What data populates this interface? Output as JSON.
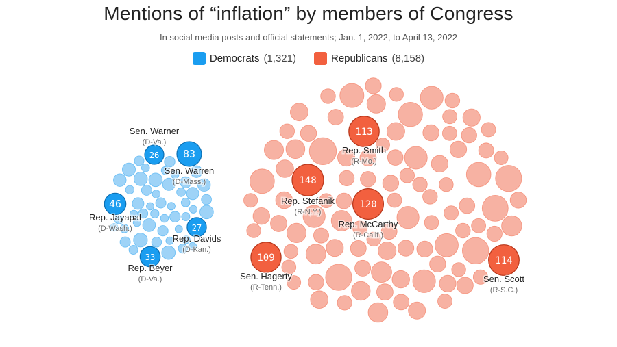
{
  "header": {
    "title": "Mentions of “inflation” by members of Congress",
    "subtitle": "In social media posts and official statements;  Jan. 1, 2022, to April 13, 2022"
  },
  "legend": {
    "democrats": {
      "label": "Democrats",
      "count": "(1,321)",
      "color": "#1a9df0"
    },
    "republicans": {
      "label": "Republicans",
      "count": "(8,158)",
      "color": "#f2603f"
    }
  },
  "chart_data": {
    "type": "packed-bubble",
    "groups": [
      {
        "name": "Democrats",
        "total": 1321,
        "color": "#1a9df0",
        "light_color": "#9ed3f7"
      },
      {
        "name": "Republicans",
        "total": 8158,
        "color": "#f2603f",
        "light_color": "#f7b2a3"
      }
    ],
    "highlighted": [
      {
        "party": "Democrats",
        "name": "Sen. Warner",
        "state": "(D-Va.)",
        "value": 26
      },
      {
        "party": "Democrats",
        "name": "Sen. Warren",
        "state": "(D-Mass.)",
        "value": 83
      },
      {
        "party": "Democrats",
        "name": "Rep. Jayapal",
        "state": "(D-Wash.)",
        "value": 46
      },
      {
        "party": "Democrats",
        "name": "Rep. Davids",
        "state": "(D-Kan.)",
        "value": 27
      },
      {
        "party": "Democrats",
        "name": "Rep. Beyer",
        "state": "(D-Va.)",
        "value": 33
      },
      {
        "party": "Republicans",
        "name": "Rep. Smith",
        "state": "(R-Mo.)",
        "value": 113
      },
      {
        "party": "Republicans",
        "name": "Rep. Stefanik",
        "state": "(R-N.Y.)",
        "value": 148
      },
      {
        "party": "Republicans",
        "name": "Rep. McCarthy",
        "state": "(R-Calif.)",
        "value": 120
      },
      {
        "party": "Republicans",
        "name": "Sen. Hagerty",
        "state": "(R-Tenn.)",
        "value": 109
      },
      {
        "party": "Republicans",
        "name": "Sen. Scott",
        "state": "(R-S.C.)",
        "value": 114
      }
    ]
  }
}
